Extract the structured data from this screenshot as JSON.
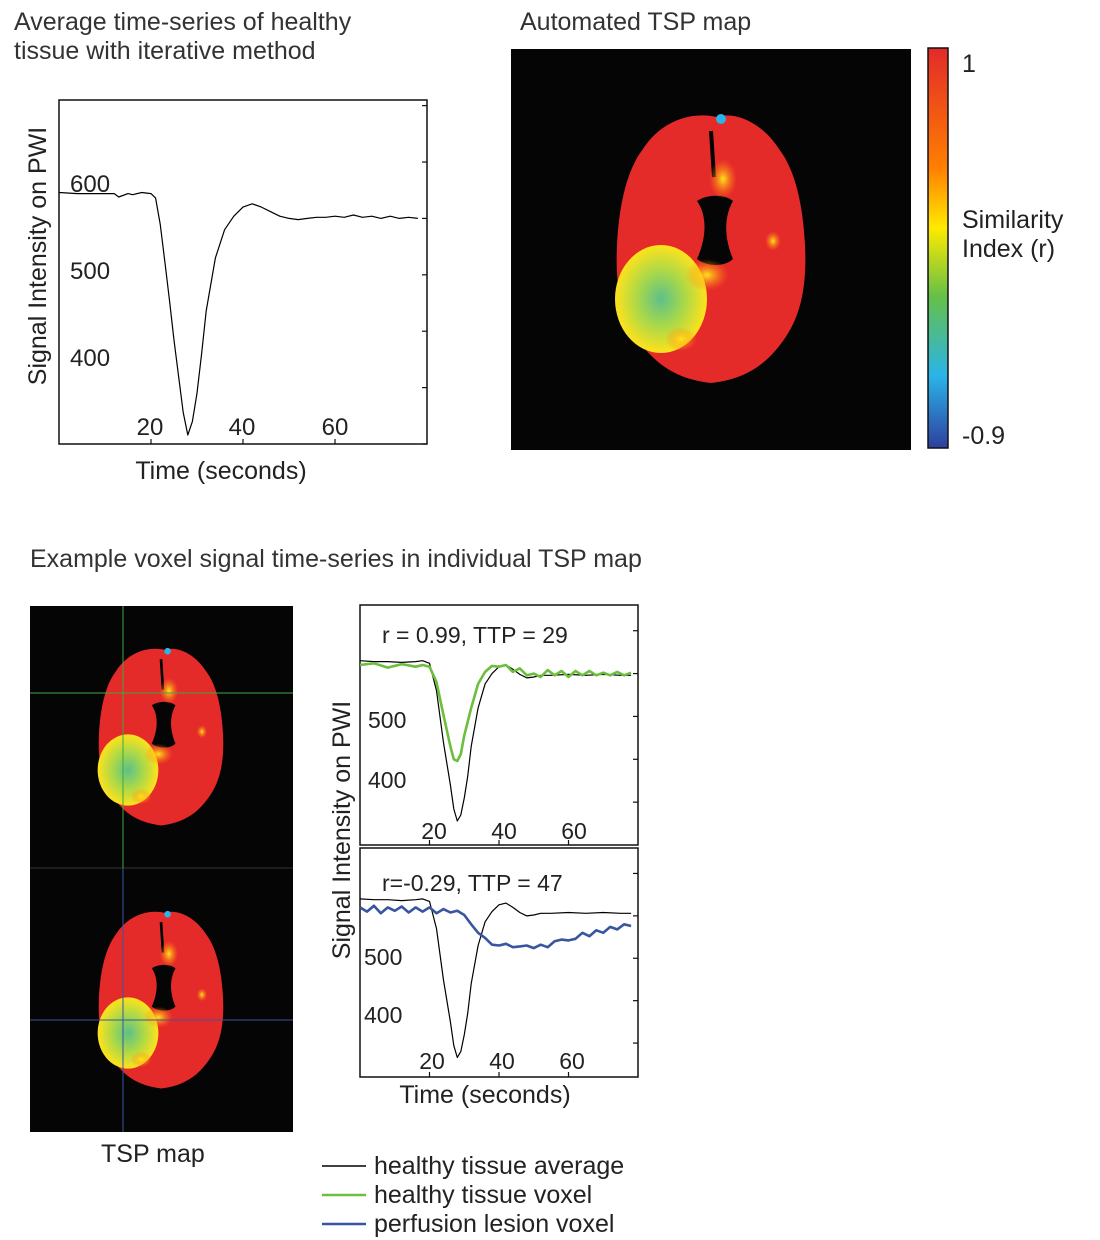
{
  "figure": {
    "top_left_title_line1": "Average time-series of healthy",
    "top_left_title_line2": "tissue with iterative method",
    "top_right_title": "Automated TSP map",
    "bottom_title": "Example voxel signal time-series in individual TSP map",
    "tsp_map_caption": "TSP map",
    "colorbar": {
      "label_line1": "Similarity",
      "label_line2": "Index (r)",
      "max_label": "1",
      "min_label": "-0.9",
      "colors": [
        "#e22a2a",
        "#ff7f00",
        "#ffea00",
        "#66c046",
        "#2ab4e8",
        "#2e3f9e"
      ]
    },
    "legend": {
      "items": [
        {
          "label": "healthy tissue average",
          "color": "#000000"
        },
        {
          "label": "healthy tissue voxel",
          "color": "#6bbf3c"
        },
        {
          "label": "perfusion lesion voxel",
          "color": "#3a55a0"
        }
      ]
    }
  },
  "chart_data": [
    {
      "type": "line",
      "title": "Average time-series of healthy tissue with iterative method",
      "xlabel": "Time (seconds)",
      "ylabel": "Signal Intensity on PWI",
      "xticks": [
        "20",
        "40",
        "60"
      ],
      "yticks": [
        "600",
        "500",
        "400"
      ],
      "xlim": [
        0,
        80
      ],
      "ylim": [
        350,
        655
      ],
      "series": [
        {
          "name": "healthy tissue average",
          "color": "#000000",
          "x": [
            0,
            4,
            8,
            12,
            13,
            15,
            16,
            18,
            20,
            21,
            22,
            23,
            24,
            25,
            26,
            27,
            28,
            29,
            30,
            31,
            32,
            34,
            36,
            38,
            40,
            42,
            44,
            46,
            48,
            50,
            52,
            54,
            56,
            58,
            60,
            62,
            64,
            66,
            68,
            70,
            72,
            74,
            76,
            78
          ],
          "y": [
            573,
            572,
            572,
            572,
            569,
            572,
            571,
            573,
            572,
            568,
            545,
            512,
            478,
            442,
            410,
            378,
            358,
            370,
            395,
            430,
            468,
            515,
            540,
            552,
            560,
            563,
            560,
            556,
            552,
            550,
            549,
            550,
            551,
            551,
            552,
            551,
            553,
            551,
            552,
            550,
            552,
            550,
            551,
            550
          ]
        }
      ]
    },
    {
      "type": "line",
      "annotation": "r = 0.99, TTP = 29",
      "xticks": [
        "20",
        "40",
        "60"
      ],
      "yticks": [
        "500",
        "400"
      ],
      "xlim": [
        0,
        80
      ],
      "ylim": [
        350,
        630
      ],
      "series": [
        {
          "name": "healthy tissue average",
          "color": "#000000",
          "x": [
            0,
            4,
            8,
            12,
            16,
            18,
            20,
            22,
            24,
            26,
            27,
            28,
            29,
            30,
            31,
            32,
            34,
            36,
            38,
            40,
            42,
            44,
            46,
            48,
            50,
            52,
            55,
            60,
            65,
            70,
            75,
            78
          ],
          "y": [
            565,
            564,
            564,
            563,
            564,
            565,
            562,
            530,
            470,
            420,
            392,
            378,
            385,
            405,
            430,
            465,
            510,
            538,
            550,
            558,
            560,
            555,
            549,
            545,
            546,
            548,
            548,
            549,
            548,
            549,
            548,
            548
          ]
        },
        {
          "name": "healthy tissue voxel",
          "color": "#6bbf3c",
          "x": [
            0,
            4,
            8,
            12,
            16,
            18,
            20,
            22,
            24,
            26,
            27,
            28,
            29,
            30,
            32,
            34,
            36,
            38,
            40,
            42,
            44,
            46,
            48,
            50,
            52,
            54,
            56,
            58,
            60,
            62,
            64,
            66,
            68,
            70,
            72,
            74,
            76,
            78
          ],
          "y": [
            560,
            562,
            557,
            561,
            558,
            560,
            558,
            540,
            502,
            465,
            450,
            448,
            456,
            478,
            510,
            538,
            552,
            559,
            558,
            560,
            552,
            556,
            548,
            550,
            546,
            554,
            548,
            553,
            546,
            553,
            548,
            553,
            548,
            551,
            548,
            552,
            548,
            551
          ]
        }
      ]
    },
    {
      "type": "line",
      "annotation": "r=-0.29, TTP = 47",
      "xlabel": "Time (seconds)",
      "ylabel": "Signal Intensity on PWI",
      "xticks": [
        "20",
        "40",
        "60"
      ],
      "yticks": [
        "500",
        "400"
      ],
      "xlim": [
        0,
        80
      ],
      "ylim": [
        360,
        630
      ],
      "series": [
        {
          "name": "healthy tissue average",
          "color": "#000000",
          "x": [
            0,
            4,
            8,
            12,
            16,
            18,
            20,
            22,
            24,
            26,
            27,
            28,
            29,
            30,
            31,
            32,
            34,
            36,
            38,
            40,
            42,
            44,
            46,
            48,
            50,
            52,
            55,
            60,
            65,
            70,
            75,
            78
          ],
          "y": [
            570,
            569,
            569,
            568,
            569,
            570,
            567,
            535,
            475,
            425,
            397,
            383,
            390,
            410,
            435,
            470,
            515,
            543,
            555,
            563,
            565,
            560,
            554,
            550,
            551,
            553,
            553,
            554,
            553,
            554,
            553,
            553
          ]
        },
        {
          "name": "perfusion lesion voxel",
          "color": "#3a55a0",
          "x": [
            0,
            2,
            4,
            6,
            8,
            10,
            12,
            14,
            16,
            18,
            20,
            22,
            24,
            26,
            28,
            30,
            32,
            34,
            36,
            38,
            40,
            42,
            44,
            46,
            48,
            50,
            52,
            54,
            56,
            58,
            60,
            62,
            64,
            66,
            68,
            70,
            72,
            74,
            76,
            78
          ],
          "y": [
            560,
            555,
            562,
            553,
            560,
            556,
            561,
            554,
            560,
            555,
            560,
            553,
            558,
            554,
            556,
            551,
            540,
            530,
            524,
            516,
            515,
            517,
            513,
            514,
            515,
            512,
            516,
            513,
            520,
            522,
            521,
            523,
            530,
            526,
            533,
            530,
            537,
            534,
            540,
            538
          ]
        }
      ]
    }
  ]
}
